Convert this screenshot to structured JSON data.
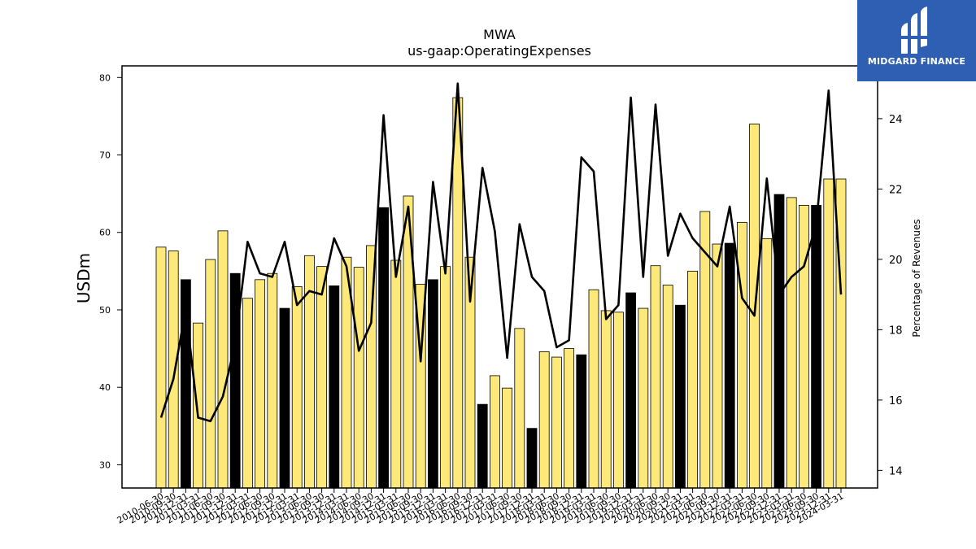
{
  "logo": {
    "text": "MIDGARD FINANCE"
  },
  "colors": {
    "bar_default": "#fde97a",
    "bar_highlight": "#000000",
    "line": "#000000",
    "logo_bg": "#2f5fb3"
  },
  "chart_data": {
    "type": "bar",
    "title": "MWA",
    "subtitle": "us-gaap:OperatingExpenses",
    "ylabel": "USDm",
    "y2label": "Percentage of Revenues",
    "ylim": [
      27,
      81.5
    ],
    "y2lim": [
      13.5,
      25.5
    ],
    "yticks": [
      30,
      40,
      50,
      60,
      70,
      80
    ],
    "y2ticks": [
      14,
      16,
      18,
      20,
      22,
      24
    ],
    "grid": false,
    "categories": [
      "2010-06-30",
      "2010-09-30",
      "2010-12-31",
      "2011-03-31",
      "2011-06-30",
      "2011-09-30",
      "2011-12-31",
      "2012-03-31",
      "2012-06-30",
      "2012-09-30",
      "2012-12-31",
      "2013-03-31",
      "2013-06-30",
      "2013-09-30",
      "2013-12-31",
      "2014-03-31",
      "2014-06-30",
      "2014-09-30",
      "2014-12-31",
      "2015-03-31",
      "2015-06-30",
      "2015-09-30",
      "2015-12-31",
      "2016-03-31",
      "2016-06-30",
      "2016-09-30",
      "2016-12-31",
      "2017-03-31",
      "2017-06-30",
      "2017-09-30",
      "2017-12-31",
      "2018-03-31",
      "2018-06-30",
      "2018-09-30",
      "2018-12-31",
      "2019-03-31",
      "2019-06-30",
      "2019-09-30",
      "2019-12-31",
      "2020-03-31",
      "2020-06-30",
      "2020-09-30",
      "2020-12-31",
      "2021-03-31",
      "2021-06-30",
      "2021-09-30",
      "2021-12-31",
      "2022-03-31",
      "2022-06-30",
      "2022-09-30",
      "2022-12-31",
      "2023-03-31",
      "2023-06-30",
      "2023-09-30",
      "2023-12-31",
      "2024-03-31"
    ],
    "xtick_labels": [
      "2010-06-30",
      "2010-09-30",
      "2010-12-31",
      "2011-03-31",
      "2011-06-30",
      "2011-09-30",
      "2011-12-31",
      "2012-03-31",
      "2012-06-30",
      "2012-09-30",
      "2012-12-31",
      "2013-03-31",
      "2013-06-30",
      "2013-09-30",
      "2013-12-31",
      "2014-03-31",
      "2014-06-30",
      "2014-09-30",
      "2014-12-31",
      "2015-03-31",
      "2015-06-30",
      "2015-09-30",
      "2015-12-31",
      "2016-03-31",
      "2016-06-30",
      "2016-09-30",
      "2016-12-31",
      "2017-03-31",
      "2017-06-30",
      "2017-09-30",
      "2017-12-31",
      "2018-03-31",
      "2018-06-30",
      "2018-09-30",
      "2018-12-31",
      "2019-03-31",
      "2019-06-30",
      "2019-09-30",
      "2019-12-31",
      "2020-03-31",
      "2020-06-30",
      "2020-09-30",
      "2020-12-31",
      "2021-03-31",
      "2021-06-30",
      "2021-09-30",
      "2021-12-31",
      "2022-03-31",
      "2022-06-30",
      "2022-09-30",
      "2022-12-31",
      "2023-03-31",
      "2023-06-30",
      "2023-09-30",
      "2023-12-31",
      "2024-03-31"
    ],
    "series": [
      {
        "type": "bar",
        "axis": "left",
        "values": [
          58.1,
          57.6,
          53.9,
          48.3,
          56.5,
          60.2,
          54.7,
          51.5,
          53.9,
          54.7,
          50.2,
          53.0,
          57.0,
          55.6,
          53.1,
          56.8,
          55.5,
          58.3,
          63.2,
          56.4,
          64.7,
          53.3,
          53.9,
          55.6,
          77.4,
          56.8,
          37.8,
          41.5,
          39.9,
          47.6,
          34.7,
          44.6,
          43.9,
          45.0,
          44.2,
          52.6,
          49.9,
          49.7,
          52.2,
          50.2,
          55.7,
          53.2,
          50.6,
          55.0,
          62.7,
          58.5,
          58.6,
          61.3,
          74.0,
          59.2,
          64.9,
          64.5,
          63.5,
          63.5,
          66.9,
          66.9
        ],
        "highlight": [
          false,
          false,
          true,
          false,
          false,
          false,
          true,
          false,
          false,
          false,
          true,
          false,
          false,
          false,
          true,
          false,
          false,
          false,
          true,
          false,
          false,
          false,
          true,
          false,
          false,
          false,
          true,
          false,
          false,
          false,
          true,
          false,
          false,
          false,
          true,
          false,
          false,
          false,
          true,
          false,
          false,
          false,
          true,
          false,
          false,
          false,
          true,
          false,
          false,
          false,
          true,
          false,
          false,
          true,
          false,
          false
        ]
      },
      {
        "type": "line",
        "axis": "right",
        "values": [
          15.5,
          16.6,
          18.6,
          15.5,
          15.4,
          16.1,
          17.6,
          20.5,
          19.6,
          19.5,
          20.5,
          18.7,
          19.1,
          19.0,
          20.6,
          19.8,
          17.4,
          18.2,
          24.1,
          19.5,
          21.5,
          17.1,
          22.2,
          19.6,
          25.0,
          18.8,
          22.6,
          20.8,
          17.2,
          21.0,
          19.5,
          19.1,
          17.5,
          17.7,
          22.9,
          22.5,
          18.3,
          18.7,
          24.6,
          19.5,
          24.4,
          20.1,
          21.3,
          20.6,
          20.2,
          19.8,
          21.5,
          18.9,
          18.4,
          22.3,
          19.0,
          19.5,
          19.8,
          21.0,
          24.8,
          19.0
        ],
        "line_cutoff_index": 55
      }
    ]
  }
}
